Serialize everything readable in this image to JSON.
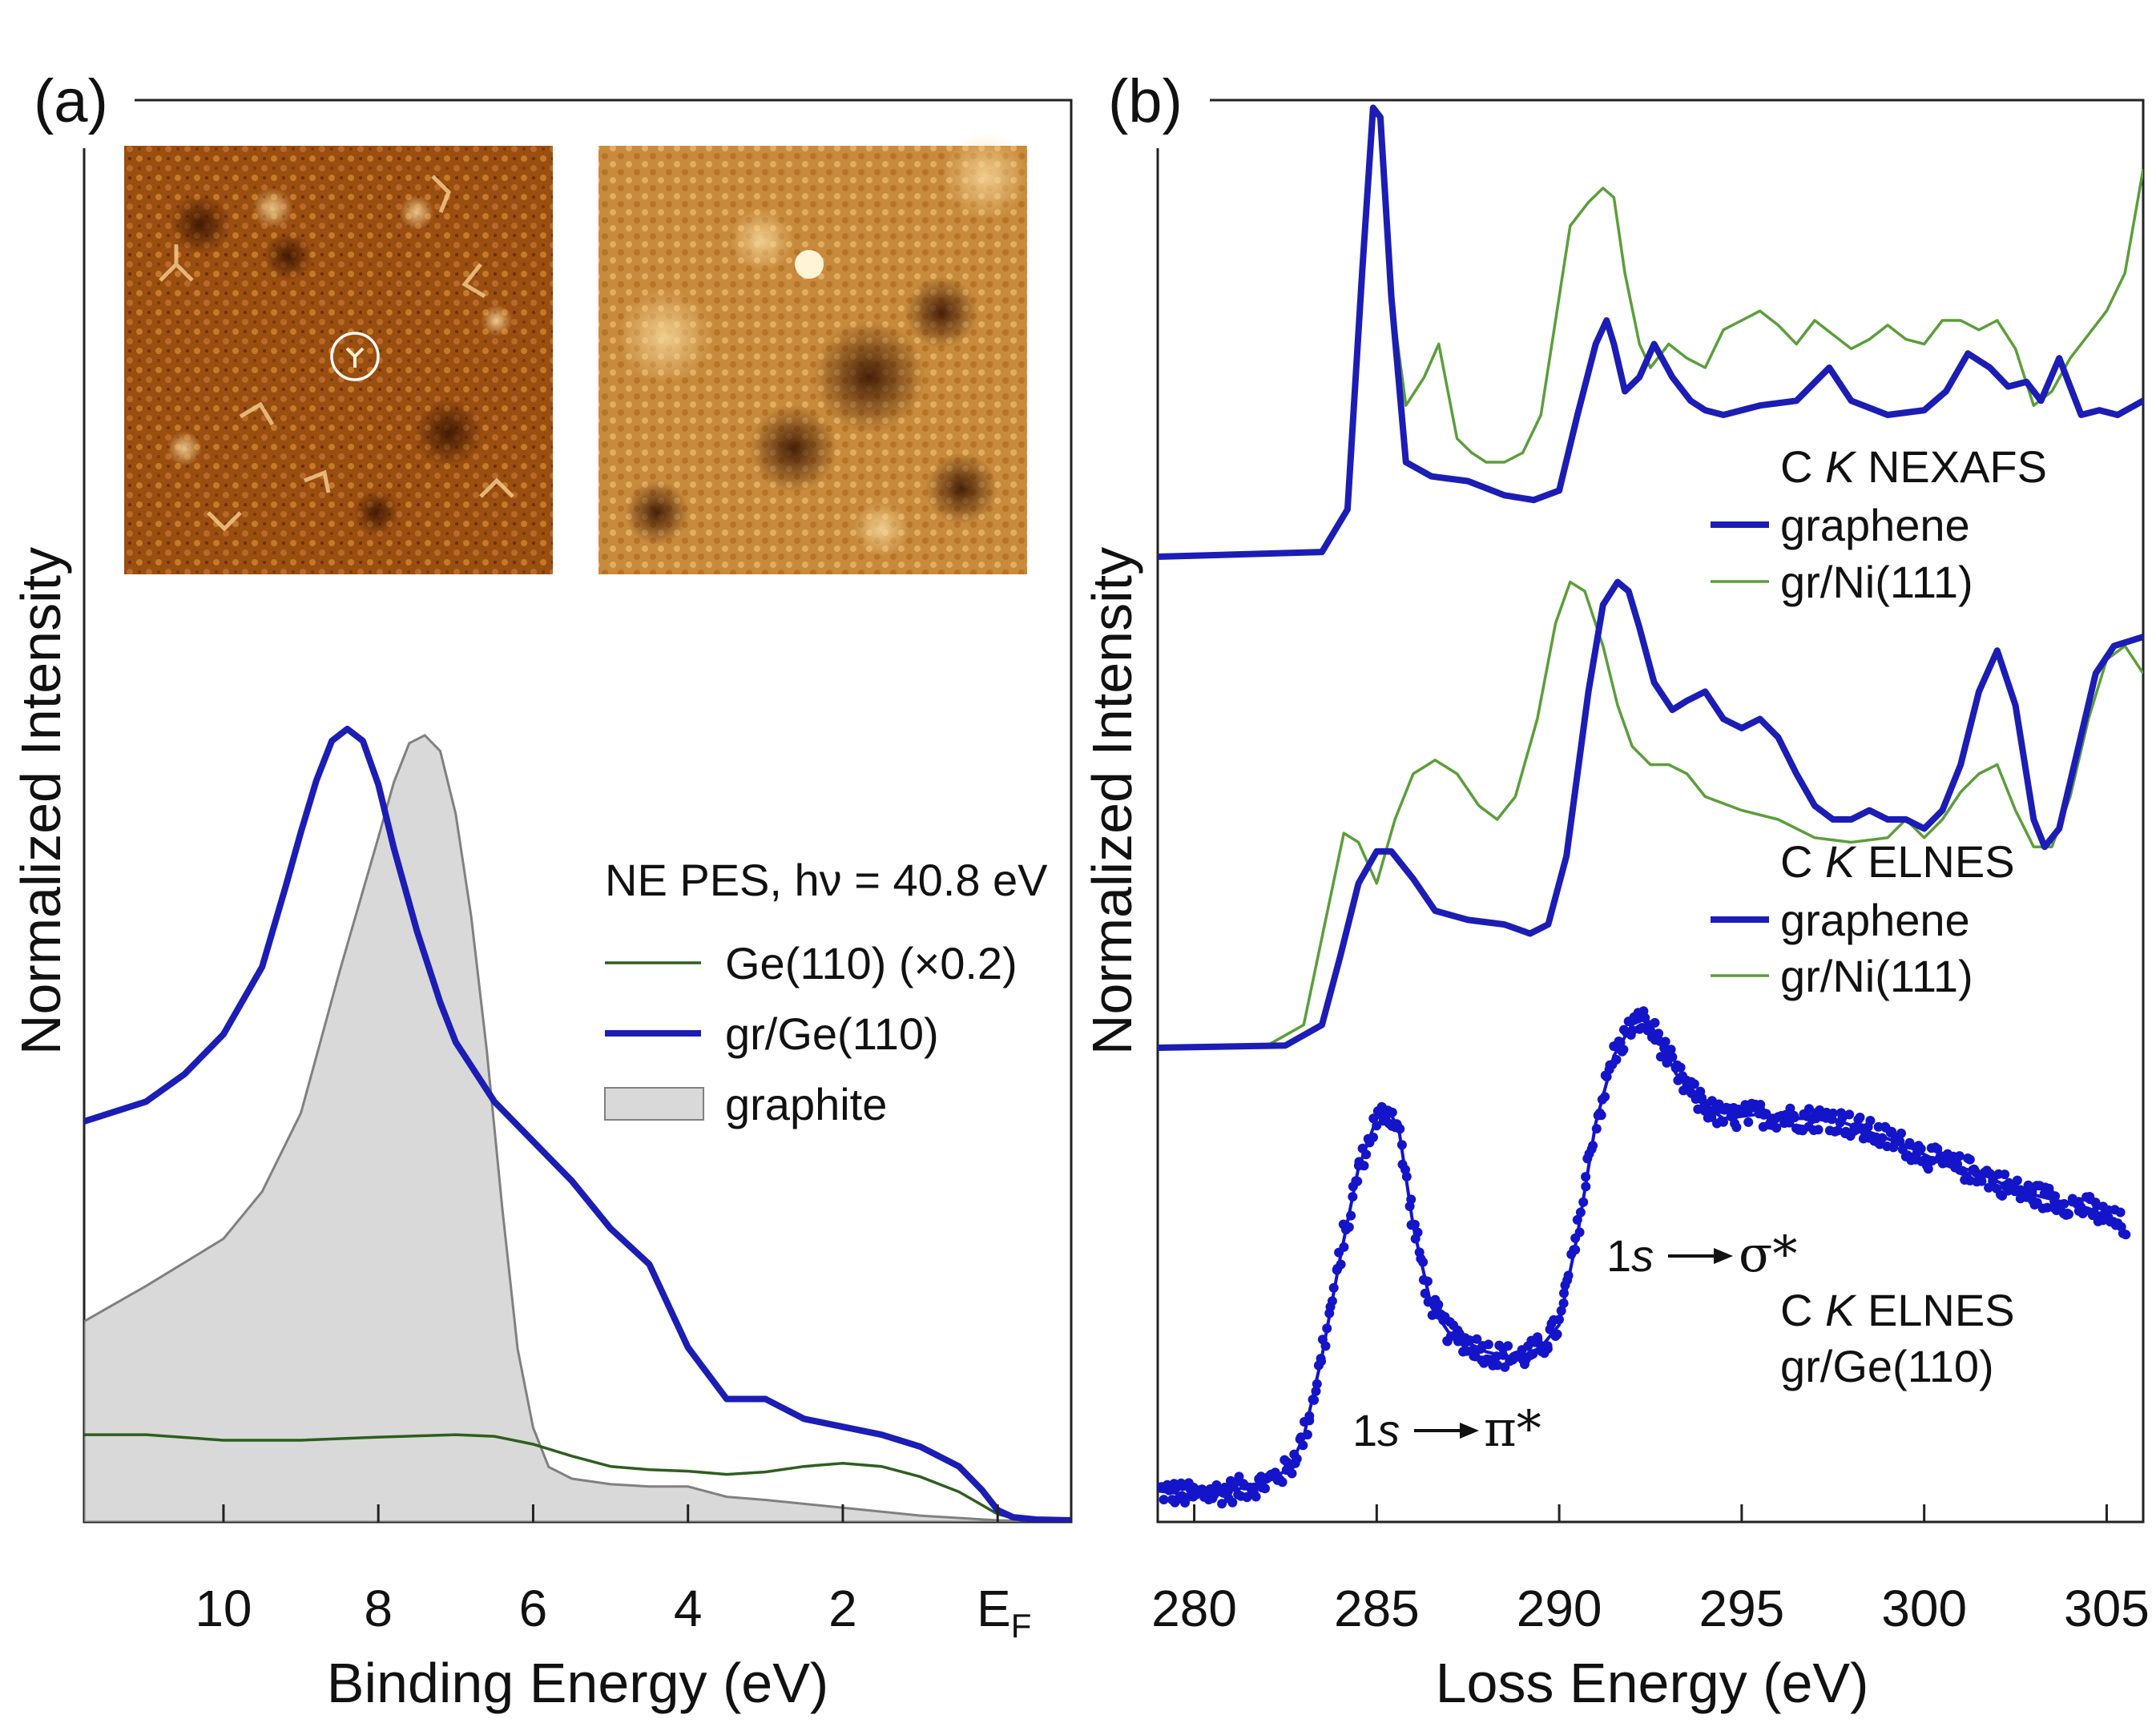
{
  "figure": {
    "panel_a_label": "(a)",
    "panel_b_label": "(b)"
  },
  "chart_data": [
    {
      "panel": "(a)",
      "type": "line",
      "title": "",
      "xlabel": "Binding Energy (eV)",
      "ylabel": "Normalized Intensity",
      "xlim": [
        11.8,
        -0.95
      ],
      "ylim": [
        0,
        1.0
      ],
      "x_reversed": true,
      "xticks": [
        10,
        8,
        6,
        4,
        2,
        0
      ],
      "xtick_labels": [
        "10",
        "8",
        "6",
        "4",
        "2",
        "E"
      ],
      "ef_subscript": "F",
      "grid": false,
      "legend_position": "center-right",
      "legend_title": "NE PES, hν = 40.8 eV",
      "insets": [
        "STM image (gr/Ge(110), defects; circled feature)",
        "STM image (gr/Ge(110), atomic lattice)"
      ],
      "series": [
        {
          "name": "Ge(110) (×0.2)",
          "color": "#2e5e1e",
          "style": "thin line",
          "x": [
            11.8,
            11,
            10,
            9,
            8,
            7,
            6.5,
            6,
            5.5,
            5,
            4.5,
            4,
            3.5,
            3,
            2.5,
            2,
            1.5,
            1,
            0.5,
            0,
            -0.3,
            -0.95
          ],
          "y": [
            0.11,
            0.11,
            0.103,
            0.103,
            0.107,
            0.11,
            0.108,
            0.098,
            0.083,
            0.07,
            0.066,
            0.064,
            0.06,
            0.063,
            0.07,
            0.074,
            0.07,
            0.057,
            0.038,
            0.01,
            0.002,
            0.001
          ]
        },
        {
          "name": "gr/Ge(110)",
          "color": "#1b1db5",
          "style": "thick line",
          "x": [
            11.8,
            11,
            10.5,
            10,
            9.5,
            9.2,
            9,
            8.8,
            8.6,
            8.4,
            8.2,
            8,
            7.8,
            7.5,
            7.2,
            7,
            6.5,
            6,
            5.5,
            5,
            4.5,
            4,
            3.5,
            3,
            2.5,
            2,
            1.5,
            1,
            0.5,
            0.2,
            0,
            -0.2,
            -0.5,
            -0.95
          ],
          "y": [
            0.505,
            0.53,
            0.565,
            0.615,
            0.7,
            0.8,
            0.87,
            0.935,
            0.985,
            1.0,
            0.985,
            0.93,
            0.85,
            0.745,
            0.655,
            0.605,
            0.53,
            0.48,
            0.43,
            0.37,
            0.325,
            0.22,
            0.155,
            0.155,
            0.13,
            0.12,
            0.11,
            0.095,
            0.07,
            0.04,
            0.015,
            0.006,
            0.003,
            0.002
          ]
        },
        {
          "name": "graphite",
          "color": "#d9d9d9",
          "style": "filled area",
          "x": [
            11.8,
            11,
            10,
            9.5,
            9,
            8.5,
            8,
            7.8,
            7.6,
            7.4,
            7.2,
            7,
            6.8,
            6.6,
            6.4,
            6.2,
            6,
            5.8,
            5.5,
            5,
            4.5,
            4,
            3.5,
            3,
            2,
            1,
            0,
            -0.95
          ],
          "y": [
            0.255,
            0.3,
            0.36,
            0.42,
            0.52,
            0.7,
            0.87,
            0.94,
            0.99,
            1.0,
            0.98,
            0.9,
            0.77,
            0.6,
            0.4,
            0.22,
            0.12,
            0.07,
            0.055,
            0.048,
            0.045,
            0.045,
            0.032,
            0.028,
            0.018,
            0.008,
            0.002,
            0.0
          ]
        }
      ]
    },
    {
      "panel": "(b)",
      "type": "line",
      "title": "",
      "xlabel": "Loss Energy (eV)",
      "ylabel": "Normalized Intensity",
      "xlim": [
        279,
        306
      ],
      "xticks": [
        280,
        285,
        290,
        295,
        300,
        305
      ],
      "xtick_labels": [
        "280",
        "285",
        "290",
        "295",
        "300",
        "305"
      ],
      "grid": false,
      "groups": [
        {
          "label_element": "C",
          "label_italic": "K",
          "label_rest": "NEXAFS",
          "legend_items": [
            "graphene",
            "gr/Ni(111)"
          ],
          "series": [
            {
              "name": "graphene",
              "color": "#1b1db5",
              "x": [
                279,
                283.5,
                284.2,
                284.6,
                284.9,
                285.1,
                285.4,
                285.8,
                286.5,
                287.5,
                288.5,
                289.3,
                290,
                290.5,
                291,
                291.3,
                291.5,
                291.8,
                292.2,
                292.6,
                293.1,
                293.6,
                294,
                294.5,
                295.5,
                296.5,
                297.4,
                298,
                299,
                300,
                300.6,
                301.2,
                301.8,
                302.3,
                302.8,
                303.2,
                303.7,
                304.3,
                304.8,
                305.3,
                306
              ],
              "y": [
                0,
                0.01,
                0.1,
                0.6,
                0.95,
                0.93,
                0.55,
                0.2,
                0.17,
                0.16,
                0.13,
                0.12,
                0.14,
                0.3,
                0.45,
                0.5,
                0.45,
                0.35,
                0.38,
                0.45,
                0.38,
                0.33,
                0.31,
                0.3,
                0.32,
                0.33,
                0.4,
                0.33,
                0.3,
                0.31,
                0.35,
                0.43,
                0.4,
                0.36,
                0.37,
                0.33,
                0.42,
                0.3,
                0.31,
                0.3,
                0.33
              ]
            },
            {
              "name": "gr/Ni(111)",
              "color": "#5b9e3a",
              "x": [
                279,
                283.5,
                284.2,
                284.6,
                284.9,
                285.1,
                285.4,
                285.8,
                286.3,
                286.7,
                287.2,
                287.6,
                288,
                288.5,
                289,
                289.5,
                290,
                290.3,
                290.8,
                291.2,
                291.5,
                291.8,
                292.2,
                292.5,
                293,
                293.5,
                294,
                294.5,
                295,
                295.5,
                296,
                296.5,
                297,
                297.5,
                298,
                298.5,
                299,
                299.5,
                300,
                300.5,
                301,
                301.5,
                302,
                302.5,
                303,
                303.5,
                304,
                304.5,
                305,
                305.5,
                306
              ],
              "y": [
                0,
                0.01,
                0.1,
                0.6,
                0.95,
                0.93,
                0.55,
                0.32,
                0.38,
                0.45,
                0.25,
                0.22,
                0.2,
                0.2,
                0.22,
                0.3,
                0.55,
                0.7,
                0.75,
                0.78,
                0.76,
                0.6,
                0.45,
                0.4,
                0.45,
                0.42,
                0.4,
                0.48,
                0.5,
                0.52,
                0.49,
                0.45,
                0.5,
                0.47,
                0.44,
                0.46,
                0.49,
                0.46,
                0.45,
                0.5,
                0.5,
                0.48,
                0.5,
                0.44,
                0.32,
                0.35,
                0.42,
                0.47,
                0.52,
                0.6,
                0.82
              ]
            }
          ]
        },
        {
          "label_element": "C",
          "label_italic": "K",
          "label_rest": "ELNES",
          "legend_items": [
            "graphene",
            "gr/Ni(111)"
          ],
          "series": [
            {
              "name": "graphene",
              "color": "#1b1db5",
              "x": [
                279,
                282.5,
                283.5,
                284,
                284.5,
                285,
                285.4,
                286,
                286.6,
                287.5,
                288.5,
                289.2,
                289.7,
                290.2,
                290.8,
                291.2,
                291.6,
                291.9,
                292.2,
                292.6,
                293.1,
                293.5,
                294,
                294.5,
                295,
                295.5,
                296,
                296.5,
                297,
                297.5,
                298,
                298.5,
                299,
                299.5,
                300,
                300.5,
                301,
                301.5,
                302,
                302.5,
                303,
                303.3,
                303.7,
                304.2,
                304.7,
                305.2,
                306
              ],
              "y": [
                0,
                0.005,
                0.05,
                0.2,
                0.36,
                0.43,
                0.43,
                0.37,
                0.3,
                0.28,
                0.27,
                0.25,
                0.27,
                0.42,
                0.78,
                0.97,
                1.02,
                1.0,
                0.92,
                0.8,
                0.74,
                0.76,
                0.78,
                0.72,
                0.7,
                0.72,
                0.68,
                0.6,
                0.53,
                0.5,
                0.5,
                0.52,
                0.5,
                0.5,
                0.48,
                0.52,
                0.62,
                0.78,
                0.87,
                0.75,
                0.5,
                0.44,
                0.48,
                0.65,
                0.82,
                0.88,
                0.9
              ]
            },
            {
              "name": "gr/Ni(111)",
              "color": "#5b9e3a",
              "x": [
                279,
                282,
                283,
                283.6,
                284.1,
                284.5,
                285,
                285.5,
                286,
                286.6,
                287.2,
                287.8,
                288.3,
                288.8,
                289.4,
                289.9,
                290.3,
                290.7,
                291.2,
                291.6,
                292,
                292.5,
                293,
                293.5,
                294,
                295,
                296,
                297,
                298,
                299,
                299.5,
                300,
                300.5,
                301,
                301.5,
                302,
                302.5,
                303,
                303.5,
                304,
                304.5,
                305,
                305.5,
                306
              ],
              "y": [
                0,
                0.005,
                0.05,
                0.28,
                0.47,
                0.45,
                0.36,
                0.5,
                0.6,
                0.63,
                0.6,
                0.53,
                0.5,
                0.55,
                0.72,
                0.93,
                1.02,
                1.0,
                0.88,
                0.75,
                0.66,
                0.62,
                0.62,
                0.6,
                0.55,
                0.52,
                0.5,
                0.46,
                0.45,
                0.46,
                0.5,
                0.46,
                0.5,
                0.56,
                0.6,
                0.62,
                0.52,
                0.44,
                0.44,
                0.55,
                0.72,
                0.85,
                0.88,
                0.82
              ]
            }
          ]
        },
        {
          "label_element": "C",
          "label_italic": "K",
          "label_rest": "ELNES",
          "label_line2": "gr/Ge(110)",
          "annotation_pi": {
            "prefix": "1",
            "italic": "s",
            "target": "π*",
            "x": 285.3
          },
          "annotation_sigma": {
            "prefix": "1",
            "italic": "s",
            "target": "σ*",
            "x": 292.3
          },
          "series": [
            {
              "name": "gr/Ge(110) (data points with fit)",
              "color": "#1414c8",
              "style": "scatter + line",
              "x": [
                279,
                280,
                281,
                282,
                282.6,
                283,
                283.5,
                284,
                284.5,
                285,
                285.3,
                285.6,
                286,
                286.5,
                287,
                287.5,
                288,
                288.5,
                289,
                289.5,
                290,
                290.5,
                291,
                291.5,
                292,
                292.3,
                292.7,
                293.2,
                293.8,
                294.5,
                295.5,
                296.5,
                297.5,
                298.5,
                299.5,
                300.5,
                301.5,
                302.5,
                303.5,
                304.5,
                305.5
              ],
              "y": [
                0.03,
                0.02,
                0.03,
                0.05,
                0.08,
                0.15,
                0.33,
                0.55,
                0.75,
                0.86,
                0.88,
                0.84,
                0.62,
                0.44,
                0.38,
                0.36,
                0.34,
                0.33,
                0.33,
                0.35,
                0.4,
                0.6,
                0.85,
                1.0,
                1.07,
                1.08,
                1.04,
                0.96,
                0.9,
                0.86,
                0.87,
                0.86,
                0.86,
                0.83,
                0.8,
                0.76,
                0.74,
                0.7,
                0.68,
                0.66,
                0.62
              ]
            }
          ]
        }
      ]
    }
  ]
}
